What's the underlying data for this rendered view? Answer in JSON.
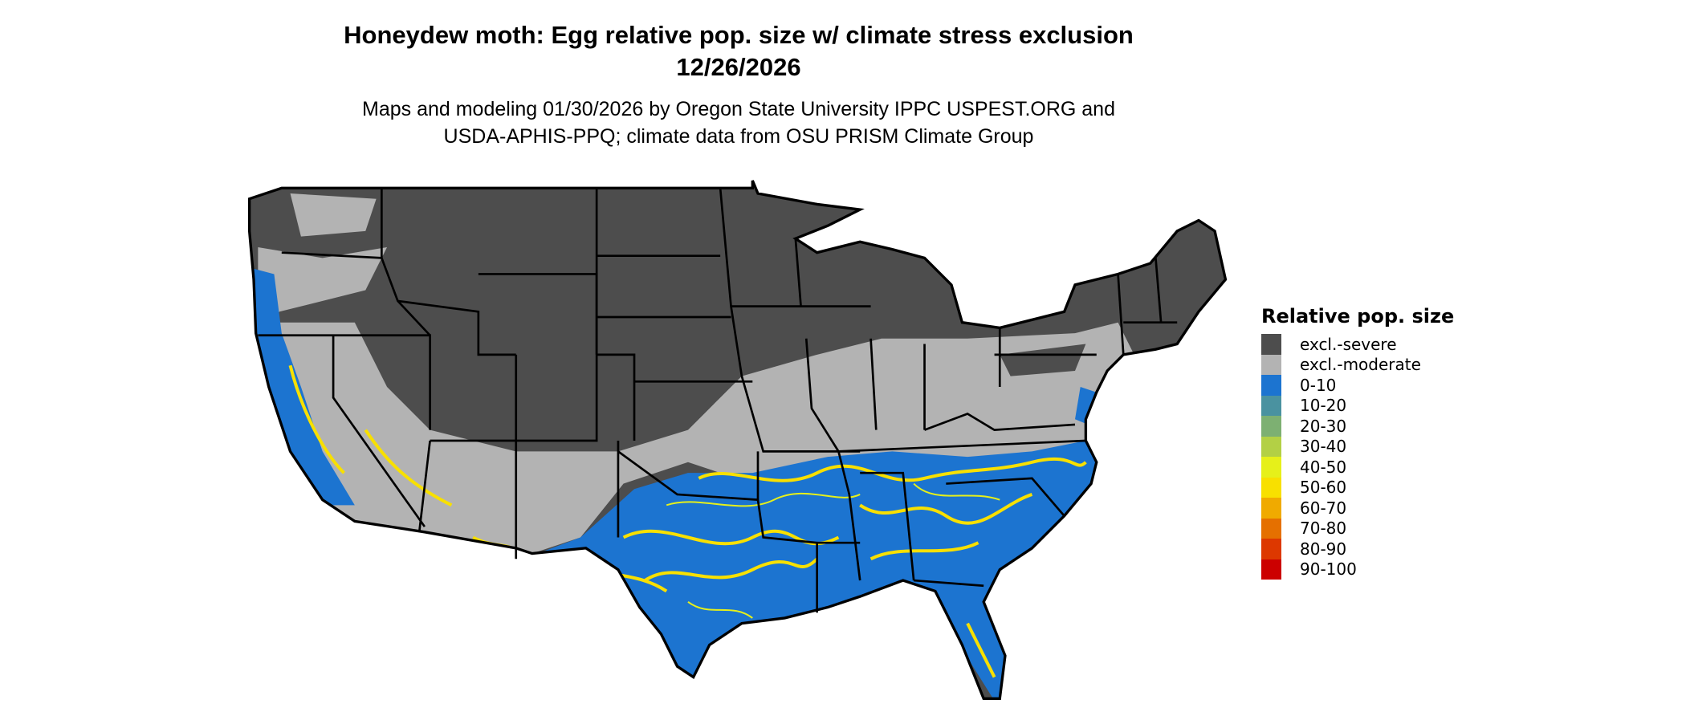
{
  "header": {
    "title": "Honeydew moth: Egg relative pop. size w/ climate stress exclusion",
    "date": "12/26/2026",
    "subtitle_line1": "Maps and modeling 01/30/2026 by Oregon State University IPPC USPEST.ORG and",
    "subtitle_line2": "USDA-APHIS-PPQ; climate data from OSU PRISM Climate Group"
  },
  "map": {
    "region": "Contiguous United States",
    "state_border_color": "#000000"
  },
  "legend": {
    "title": "Relative pop. size",
    "items": [
      {
        "label": "excl.-severe",
        "color": "#4d4d4d"
      },
      {
        "label": "excl.-moderate",
        "color": "#b3b3b3"
      },
      {
        "label": "0-10",
        "color": "#1c74d0"
      },
      {
        "label": "10-20",
        "color": "#4a92a0"
      },
      {
        "label": "20-30",
        "color": "#7db072"
      },
      {
        "label": "30-40",
        "color": "#b3d045"
      },
      {
        "label": "40-50",
        "color": "#e6f01a"
      },
      {
        "label": "50-60",
        "color": "#f8e000"
      },
      {
        "label": "60-70",
        "color": "#f0aa00"
      },
      {
        "label": "70-80",
        "color": "#e57000"
      },
      {
        "label": "80-90",
        "color": "#dd3800"
      },
      {
        "label": "90-100",
        "color": "#cc0000"
      }
    ]
  }
}
